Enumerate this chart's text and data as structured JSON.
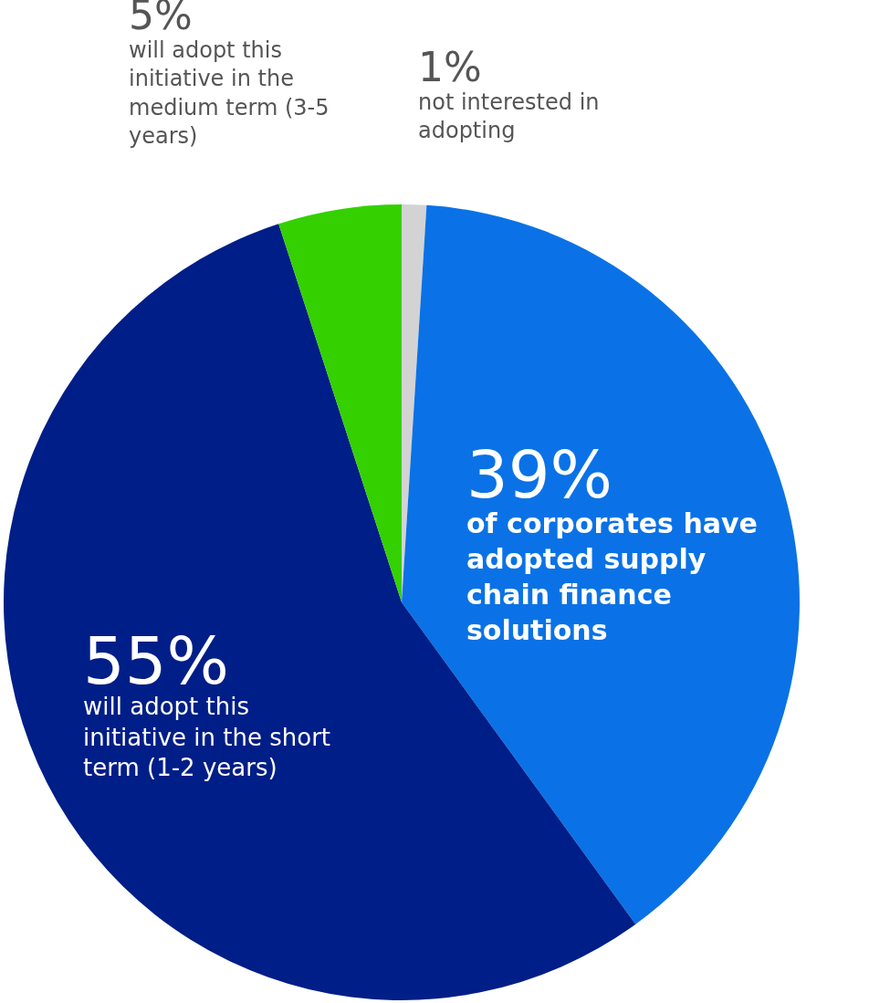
{
  "chart_data": {
    "type": "pie",
    "categories": [
      "not interested in adopting",
      "of corporates have adopted supply chain finance solutions",
      "will adopt this initiative in the short term (1-2 years)",
      "will adopt this initiative in the medium term (3-5 years)"
    ],
    "values": [
      1,
      39,
      55,
      5
    ],
    "value_labels": [
      "1%",
      "39%",
      "55%",
      "5%"
    ],
    "colors": [
      "#d3d3d3",
      "#0a72e6",
      "#001e87",
      "#35d000"
    ],
    "legend": false
  }
}
